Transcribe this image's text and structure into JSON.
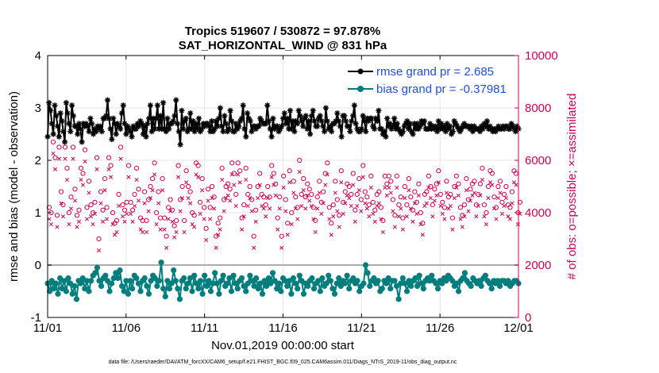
{
  "chart_data": {
    "type": "line",
    "title_line1": "Tropics 519607 / 530872 = 97.878%",
    "title_line2": "SAT_HORIZONTAL_WIND @ 831 hPa",
    "xlabel": "Nov.01,2019 00:00:00 start",
    "ylabel_left": "rmse and bias (model - observation)",
    "ylabel_right": "# of obs: o=possible; ×=assimilated",
    "footer": "data file: /Users/raeder/DAI/ATM_forcXX/CAM6_setup/f.e21.FHIST_BGC.f09_025.CAM6assim.011/Diags_NTrS_2019-11/obs_diag_output.nc",
    "x_tick_labels": [
      "11/01",
      "11/06",
      "11/11",
      "11/16",
      "11/21",
      "11/26",
      "12/01"
    ],
    "x_ticks": [
      0,
      5,
      10,
      15,
      20,
      25,
      30
    ],
    "xlim": [
      0,
      30
    ],
    "ylim_left": [
      -1,
      4
    ],
    "y_ticks_left": [
      -1,
      0,
      1,
      2,
      3,
      4
    ],
    "y_tick_labels_left": [
      "-1",
      "0",
      "1",
      "2",
      "3",
      "4"
    ],
    "ylim_right": [
      0,
      10000
    ],
    "y_ticks_right": [
      0,
      2000,
      4000,
      6000,
      8000,
      10000
    ],
    "y_tick_labels_right": [
      "0",
      "2000",
      "4000",
      "6000",
      "8000",
      "10000"
    ],
    "legend_position": "top-right",
    "colors": {
      "rmse": "#000000",
      "bias": "#007d7d",
      "obs": "#cc0055",
      "zero_line": "#aaaaaa",
      "legend_text": "#1f4fd6",
      "right_axis": "#cc0055"
    },
    "x_step_days": 0.25,
    "series": [
      {
        "name": "rmse grand pr = 2.685",
        "axis": "left",
        "values": [
          2.45,
          3.1,
          2.95,
          2.7,
          2.5,
          3.05,
          2.85,
          2.65,
          2.45,
          2.9,
          2.75,
          2.55,
          2.35,
          3.1,
          2.9,
          2.7,
          2.55,
          3.05,
          2.85,
          2.65,
          2.65,
          2.5,
          2.7,
          2.6,
          2.35,
          2.7,
          2.65,
          2.7,
          2.65,
          2.55,
          2.8,
          2.7,
          2.5,
          2.6,
          2.55,
          2.65,
          2.6,
          2.65,
          2.55,
          2.8,
          2.8,
          2.85,
          3.15,
          2.8,
          2.6,
          2.4,
          2.8,
          2.7,
          2.5,
          2.7,
          2.65,
          2.6,
          2.9,
          3.05,
          2.7,
          2.5,
          2.65,
          2.6,
          2.55,
          2.45,
          2.65,
          2.6,
          2.6,
          2.7,
          2.65,
          2.75,
          2.7,
          2.5,
          2.65,
          2.45,
          2.7,
          2.8,
          3.05,
          2.55,
          2.8,
          2.6,
          2.8,
          3.05,
          2.6,
          2.85,
          2.6,
          3.1,
          2.6,
          2.55,
          2.8,
          2.6,
          2.7,
          2.7,
          2.75,
          2.85,
          3.15,
          2.7,
          2.55,
          2.3,
          2.95,
          2.6,
          2.75,
          2.8,
          2.55,
          2.6,
          2.9,
          2.6,
          2.75,
          2.55,
          2.7,
          2.6,
          2.8,
          2.55,
          2.6,
          2.7,
          2.65,
          2.7,
          2.7,
          2.65,
          2.55,
          2.75,
          2.55,
          2.6,
          2.75,
          2.65,
          2.8,
          3.0,
          2.65,
          2.55,
          2.85,
          2.7,
          2.55,
          2.6,
          2.95,
          2.75,
          2.55,
          2.55,
          2.7,
          2.6,
          2.65,
          2.75,
          2.8,
          3.05,
          2.6,
          2.45,
          2.9,
          2.8,
          2.75,
          2.55,
          2.65,
          2.65,
          2.6,
          2.65,
          2.65,
          2.8,
          2.75,
          2.7,
          2.7,
          2.7,
          3.05,
          2.75,
          2.6,
          2.45,
          2.8,
          2.6,
          2.65,
          2.65,
          2.55,
          2.6,
          2.65,
          2.8,
          2.9,
          2.7,
          2.8,
          2.6,
          2.95,
          2.6,
          2.75,
          2.55,
          2.75,
          2.7,
          2.95,
          2.85,
          2.75,
          2.65,
          2.8,
          2.85,
          2.6,
          2.75,
          2.5,
          2.85,
          2.95,
          2.75,
          2.65,
          2.65,
          2.8,
          2.85,
          2.75,
          2.65,
          2.55,
          3.0,
          2.75,
          2.6,
          2.65,
          2.55,
          2.7,
          2.7,
          2.75,
          2.9,
          2.75,
          2.65,
          2.45,
          2.85,
          2.85,
          2.75,
          2.65,
          2.65,
          2.55,
          2.75,
          2.85,
          3.05,
          2.7,
          2.6,
          2.55,
          2.55,
          2.6,
          2.85,
          2.75,
          2.55,
          2.8,
          2.75,
          2.8,
          2.8,
          2.65,
          2.6,
          2.8,
          2.75,
          2.95,
          2.6,
          2.6,
          2.5,
          2.55,
          2.45,
          2.8,
          2.65,
          2.7,
          2.6,
          2.65,
          2.8,
          2.6,
          2.7,
          2.6,
          2.55,
          2.5,
          2.55,
          2.65,
          2.7,
          2.75,
          2.6,
          2.7,
          2.55,
          2.5,
          2.7,
          2.6,
          2.7,
          2.6,
          2.65,
          2.75,
          2.7,
          2.75,
          2.6,
          2.6,
          2.6,
          2.7,
          2.6,
          2.65,
          2.6,
          2.65,
          2.55,
          2.75,
          2.6,
          2.7,
          2.6,
          2.65,
          2.55,
          2.7,
          2.6,
          2.65,
          2.5,
          2.55,
          2.75,
          2.7,
          2.65,
          2.6,
          2.55,
          2.6,
          2.65,
          2.7,
          2.65,
          2.65,
          2.65,
          2.6,
          2.65,
          2.55,
          2.65,
          2.6,
          2.6,
          2.6,
          2.55,
          2.65,
          2.6,
          2.7,
          2.65,
          2.75,
          2.6,
          2.65,
          2.6,
          2.55,
          2.6,
          2.55,
          2.6,
          2.65,
          2.6,
          2.6,
          2.65,
          2.6,
          2.65,
          2.65,
          2.6,
          2.6,
          2.7,
          2.65,
          2.6,
          2.55,
          2.65,
          2.6
        ]
      },
      {
        "name": "bias grand pr = -0.37981",
        "axis": "left",
        "values": [
          -0.35,
          -0.5,
          -0.3,
          -0.45,
          -0.35,
          -0.55,
          -0.25,
          -0.45,
          -0.3,
          -0.5,
          -0.25,
          -0.35,
          -0.55,
          -0.4,
          -0.65,
          -0.3,
          -0.35,
          -0.25,
          -0.45,
          -0.3,
          -0.5,
          -0.3,
          -0.2,
          -0.15,
          -0.05,
          -0.3,
          -0.4,
          -0.25,
          -0.2,
          -0.3,
          -0.5,
          -0.35,
          -0.25,
          -0.15,
          -0.25,
          -0.1,
          -0.4,
          -0.5,
          -0.3,
          -0.55,
          -0.3,
          -0.45,
          -0.2,
          -0.25,
          -0.35,
          -0.5,
          -0.3,
          -0.25,
          -0.4,
          -0.55,
          -0.3,
          -0.2,
          -0.25,
          -0.4,
          -0.3,
          0.05,
          -0.45,
          -0.6,
          -0.3,
          -0.45,
          -0.35,
          -0.1,
          -0.3,
          -0.45,
          -0.65,
          -0.3,
          -0.25,
          -0.45,
          -0.35,
          -0.25,
          -0.5,
          -0.2,
          -0.35,
          -0.45,
          -0.3,
          -0.55,
          -0.2,
          -0.4,
          -0.3,
          -0.5,
          -0.35,
          -0.15,
          -0.35,
          -0.55,
          -0.3,
          -0.2,
          -0.4,
          -0.35,
          -0.25,
          -0.5,
          -0.2,
          -0.35,
          -0.45,
          -0.3,
          -0.25,
          -0.4,
          -0.5,
          -0.35,
          -0.2,
          -0.3,
          -0.4,
          -0.25,
          -0.45,
          -0.35,
          -0.55,
          -0.3,
          -0.4,
          -0.25,
          -0.35,
          -0.15,
          -0.3,
          -0.45,
          -0.35,
          -0.5,
          -0.25,
          -0.3,
          -0.4,
          -0.3,
          -0.55,
          -0.25,
          -0.35,
          -0.45,
          -0.2,
          -0.3,
          -0.55,
          -0.35,
          -0.4,
          -0.3,
          -0.25,
          -0.45,
          -0.35,
          -0.3,
          -0.5,
          -0.25,
          -0.4,
          -0.35,
          -0.2,
          -0.3,
          -0.45,
          -0.55,
          -0.35,
          -0.25,
          -0.4,
          -0.3,
          -0.35,
          -0.2,
          -0.45,
          -0.3,
          -0.25,
          -0.35,
          -0.3,
          -0.5,
          -0.4,
          -0.35,
          0.0,
          -0.15,
          -0.4,
          -0.3,
          -0.25,
          -0.35,
          -0.3,
          -0.5,
          -0.45,
          -0.3,
          -0.35,
          -0.25,
          -0.45,
          -0.3,
          -0.3,
          -0.4,
          -0.65,
          -0.35,
          -0.25,
          -0.35,
          -0.5,
          -0.3,
          -0.4,
          -0.3,
          -0.25,
          -0.4,
          -0.2,
          -0.35,
          -0.45,
          -0.3,
          -0.25,
          -0.3,
          -0.2,
          -0.3,
          -0.35,
          -0.45,
          -0.3,
          -0.35,
          -0.25,
          -0.3,
          -0.2,
          -0.25,
          -0.3,
          -0.4,
          -0.35,
          -0.5,
          -0.3,
          -0.25,
          -0.15,
          -0.3,
          -0.35,
          -0.4,
          -0.25,
          -0.3,
          -0.35,
          -0.3,
          -0.4,
          -0.25,
          -0.2,
          -0.3,
          -0.35,
          -0.45,
          -0.3,
          -0.35,
          -0.3,
          -0.4,
          -0.3,
          -0.3,
          -0.35,
          -0.3,
          -0.4,
          -0.35,
          -0.3,
          -0.3,
          -0.35
        ]
      },
      {
        "name": "possible",
        "axis": "right",
        "values": [
          4200,
          4000,
          6700,
          6100,
          3900,
          6500,
          4800,
          4300,
          6500,
          5700,
          4000,
          4600,
          6500,
          4900,
          3900,
          4100,
          5700,
          5500,
          6400,
          4200,
          5200,
          4300,
          4000,
          4400,
          6100,
          3000,
          4800,
          4100,
          5300,
          4200,
          6100,
          5800,
          4000,
          3600,
          3700,
          4700,
          6500,
          4300,
          4100,
          4400,
          5800,
          4400,
          4100,
          4700,
          5700,
          4900,
          3800,
          3700,
          4800,
          3700,
          4500,
          5000,
          5300,
          5900,
          4000,
          4800,
          3800,
          5300,
          3800,
          3100,
          4200,
          4500,
          4100,
          3500,
          3700,
          5800,
          4500,
          5000,
          3700,
          5600,
          5000,
          4800,
          4000,
          3900,
          5900,
          5800,
          4400,
          5300,
          4200,
          3400,
          4900,
          4200,
          5000,
          4600,
          3100,
          3600,
          3800,
          5700,
          4500,
          5000,
          5100,
          4900,
          5900,
          5500,
          4700,
          5900,
          5600,
          3800,
          4300,
          5700,
          4700,
          5000,
          4500,
          3100,
          4100,
          5000,
          5500,
          4700,
          4600,
          4300,
          5000,
          4600,
          5800,
          5500,
          5100,
          3800,
          4600,
          3100,
          5400,
          4500,
          3600,
          5600,
          4000,
          5200,
          4600,
          4200,
          6000,
          4700,
          5300,
          4600,
          5100,
          4900,
          4700,
          4200,
          3700,
          4600,
          5200,
          4400,
          4800,
          5500,
          5900,
          4200,
          3600,
          4300,
          5200,
          4500,
          3900,
          5600,
          4400,
          4800,
          5100,
          5000,
          4700,
          5500,
          4100,
          4700,
          5300,
          4500,
          5800,
          4800,
          4600,
          4300,
          5400,
          4400,
          4100,
          4700,
          4800,
          4200,
          3700,
          5400,
          5100,
          5400,
          5200,
          4500,
          3900,
          5400,
          4300,
          4600,
          3800,
          5000,
          4300,
          5300,
          4600,
          4100,
          4800,
          4400,
          5100,
          4000,
          3600,
          4700,
          4800,
          5400,
          5000,
          4300,
          4900,
          5100,
          5600,
          4700,
          4400,
          4200,
          5200,
          4600,
          4700,
          3800,
          5000,
          5400,
          5100,
          4200,
          3900,
          4300,
          5300,
          4500,
          4900,
          5100,
          5200,
          4300,
          4700,
          5100,
          5700,
          4300,
          4000,
          5000,
          5600,
          5500,
          4600,
          4200,
          5000,
          5200,
          4400,
          4700,
          5000,
          4300,
          4200,
          4800,
          5600,
          5500,
          4000,
          4400
        ],
        "note": "markers: o (circle)"
      }
    ]
  }
}
